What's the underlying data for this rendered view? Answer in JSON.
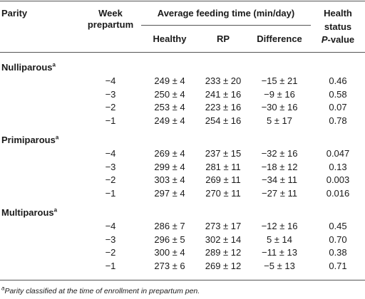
{
  "headers": {
    "parity": "Parity",
    "week_line1": "Week",
    "week_line2": "prepartum",
    "avg_group": "Average feeding time (min/day)",
    "healthy": "Healthy",
    "rp": "RP",
    "difference": "Difference",
    "health_line1": "Health",
    "health_line2": "status",
    "pvalue_p": "P",
    "pvalue_rest": "-value"
  },
  "sections": [
    {
      "label": "Nulliparous",
      "sup": "a",
      "rows": [
        {
          "week": "−4",
          "healthy": "249 ± 4",
          "rp": "233 ± 20",
          "diff": "−15 ± 21",
          "p": "0.46"
        },
        {
          "week": "−3",
          "healthy": "250 ± 4",
          "rp": "241 ± 16",
          "diff": "−9 ± 16",
          "p": "0.58"
        },
        {
          "week": "−2",
          "healthy": "253 ± 4",
          "rp": "223 ± 16",
          "diff": "−30 ± 16",
          "p": "0.07"
        },
        {
          "week": "−1",
          "healthy": "249 ± 4",
          "rp": "254 ± 16",
          "diff": "5 ± 17",
          "p": "0.78"
        }
      ]
    },
    {
      "label": "Primiparous",
      "sup": "a",
      "rows": [
        {
          "week": "−4",
          "healthy": "269 ± 4",
          "rp": "237 ± 15",
          "diff": "−32 ± 16",
          "p": "0.047"
        },
        {
          "week": "−3",
          "healthy": "299 ± 4",
          "rp": "281 ± 11",
          "diff": "−18 ± 12",
          "p": "0.13"
        },
        {
          "week": "−2",
          "healthy": "303 ± 4",
          "rp": "269 ± 11",
          "diff": "−34 ± 11",
          "p": "0.003"
        },
        {
          "week": "−1",
          "healthy": "297 ± 4",
          "rp": "270 ± 11",
          "diff": "−27 ± 11",
          "p": "0.016"
        }
      ]
    },
    {
      "label": "Multiparous",
      "sup": "a",
      "rows": [
        {
          "week": "−4",
          "healthy": "286 ± 7",
          "rp": "273 ± 17",
          "diff": "−12 ± 16",
          "p": "0.45"
        },
        {
          "week": "−3",
          "healthy": "296 ± 5",
          "rp": "302 ± 14",
          "diff": "5 ± 14",
          "p": "0.70"
        },
        {
          "week": "−2",
          "healthy": "300 ± 4",
          "rp": "289 ± 12",
          "diff": "−11 ± 13",
          "p": "0.38"
        },
        {
          "week": "−1",
          "healthy": "273 ± 6",
          "rp": "269 ± 12",
          "diff": "−5 ± 13",
          "p": "0.71"
        }
      ]
    }
  ],
  "footnote": {
    "sup": "a",
    "text": "Parity classified at the time of enrollment in prepartum pen."
  }
}
